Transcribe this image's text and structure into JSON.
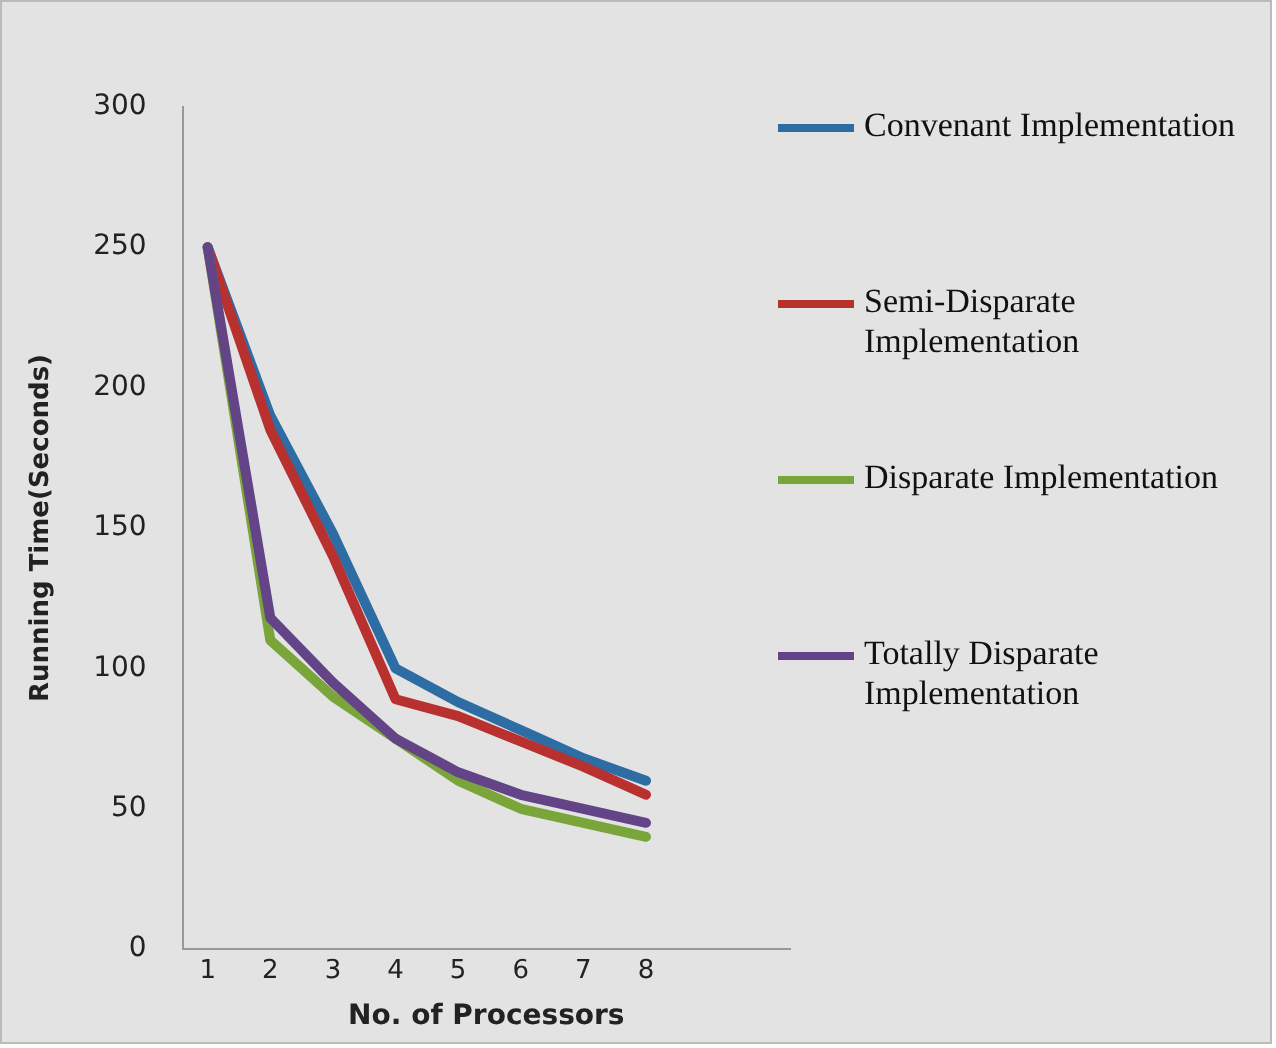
{
  "chart_data": {
    "type": "line",
    "xlabel": "No. of Processors",
    "ylabel": "Running Time(Seconds)",
    "x": [
      1,
      2,
      3,
      4,
      5,
      6,
      7,
      8
    ],
    "xlim": [
      0.6,
      10.3
    ],
    "xticks": [
      1,
      2,
      3,
      4,
      5,
      6,
      7,
      8
    ],
    "ylim": [
      0,
      300
    ],
    "yticks": [
      0,
      50,
      100,
      150,
      200,
      250,
      300
    ],
    "grid": false,
    "legend": "right",
    "marker": "none",
    "line_style": "solid",
    "series": [
      {
        "name": "Convenant Implementation",
        "color": "#2e6ca4",
        "values": [
          250,
          190,
          148,
          100,
          88,
          78,
          68,
          60
        ]
      },
      {
        "name": "Semi-Disparate Implementation",
        "color": "#b8312f",
        "values": [
          250,
          185,
          140,
          89,
          83,
          74,
          65,
          55
        ]
      },
      {
        "name": "Disparate Implementation",
        "color": "#7aa53a",
        "values": [
          250,
          110,
          90,
          75,
          60,
          50,
          45,
          40
        ]
      },
      {
        "name": "Totally Disparate Implementation",
        "color": "#634487",
        "values": [
          250,
          118,
          95,
          75,
          63,
          55,
          50,
          45
        ]
      }
    ]
  }
}
